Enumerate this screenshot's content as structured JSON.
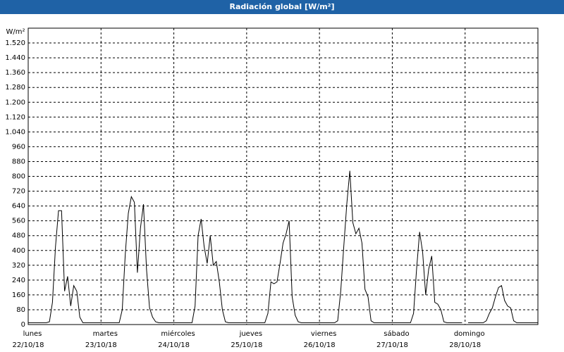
{
  "chart_data": {
    "type": "line",
    "title": "Radiación global [W/m²]",
    "y_label": "W/m²",
    "x": [
      0,
      1,
      2,
      3,
      4,
      5,
      6,
      7,
      8,
      9,
      10,
      11,
      12,
      13,
      14,
      15,
      16,
      17,
      18,
      19,
      20,
      21,
      22,
      23,
      24,
      25,
      26,
      27,
      28,
      29,
      30,
      31,
      32,
      33,
      34,
      35,
      36,
      37,
      38,
      39,
      40,
      41,
      42,
      43,
      44,
      45,
      46,
      47,
      48,
      49,
      50,
      51,
      52,
      53,
      54,
      55,
      56,
      57,
      58,
      59,
      60,
      61,
      62,
      63,
      64,
      65,
      66,
      67,
      68,
      69,
      70,
      71,
      72,
      73,
      74,
      75,
      76,
      77,
      78,
      79,
      80,
      81,
      82,
      83,
      84,
      85,
      86,
      87,
      88,
      89,
      90,
      91,
      92,
      93,
      94,
      95,
      96,
      97,
      98,
      99,
      100,
      101,
      102,
      103,
      104,
      105,
      106,
      107,
      108,
      109,
      110,
      111,
      112,
      113,
      114,
      115,
      116,
      117,
      118,
      119,
      120,
      121,
      122,
      123,
      124,
      125,
      126,
      127,
      128,
      129,
      130,
      131,
      132,
      133,
      134,
      135,
      136,
      137,
      138,
      139,
      140,
      141,
      142,
      143,
      144,
      145,
      146,
      147,
      148,
      149,
      150,
      151,
      152,
      153,
      154,
      155,
      156,
      157,
      158,
      159,
      160,
      161,
      162,
      163,
      164,
      165,
      166,
      167,
      168
    ],
    "series": [
      {
        "name": "Radiación global",
        "color": "#000000",
        "values": [
          10,
          10,
          10,
          10,
          10,
          10,
          10,
          15,
          120,
          420,
          615,
          615,
          180,
          260,
          100,
          210,
          180,
          40,
          10,
          10,
          10,
          10,
          10,
          10,
          10,
          10,
          10,
          10,
          10,
          10,
          10,
          80,
          380,
          600,
          690,
          660,
          280,
          520,
          650,
          300,
          90,
          40,
          15,
          10,
          10,
          10,
          10,
          10,
          10,
          10,
          10,
          10,
          10,
          10,
          10,
          100,
          480,
          570,
          420,
          330,
          480,
          320,
          340,
          230,
          80,
          15,
          10,
          10,
          10,
          10,
          10,
          10,
          10,
          10,
          10,
          10,
          10,
          10,
          10,
          60,
          230,
          220,
          230,
          330,
          440,
          490,
          560,
          150,
          50,
          15,
          10,
          10,
          10,
          10,
          10,
          10,
          10,
          10,
          10,
          10,
          10,
          10,
          20,
          180,
          420,
          650,
          830,
          550,
          490,
          520,
          440,
          190,
          150,
          20,
          10,
          10,
          10,
          10,
          10,
          10,
          10,
          10,
          10,
          10,
          10,
          10,
          10,
          60,
          300,
          500,
          390,
          160,
          300,
          370,
          120,
          110,
          80,
          15,
          10,
          10,
          10,
          10,
          10,
          10,
          null,
          10,
          10,
          10,
          10,
          10,
          10,
          20,
          60,
          90,
          150,
          200,
          210,
          130,
          100,
          90,
          20,
          10,
          10,
          10,
          10,
          10,
          10,
          10,
          10
        ]
      }
    ],
    "xlim": [
      0,
      168
    ],
    "xticks": [
      {
        "value": 0,
        "label": [
          "lunes",
          "22/10/18"
        ]
      },
      {
        "value": 24,
        "label": [
          "martes",
          "23/10/18"
        ]
      },
      {
        "value": 48,
        "label": [
          "miércoles",
          "24/10/18"
        ]
      },
      {
        "value": 72,
        "label": [
          "jueves",
          "25/10/18"
        ]
      },
      {
        "value": 96,
        "label": [
          "viernes",
          "26/10/18"
        ]
      },
      {
        "value": 120,
        "label": [
          "sábado",
          "27/10/18"
        ]
      },
      {
        "value": 144,
        "label": [
          "domingo",
          "28/10/18"
        ]
      }
    ],
    "ylim": [
      0,
      1600
    ],
    "yticks": [
      0,
      80,
      160,
      240,
      320,
      400,
      480,
      560,
      640,
      720,
      800,
      880,
      960,
      {
        "value": 1040,
        "label": "1.040"
      },
      {
        "value": 1120,
        "label": "1.120"
      },
      {
        "value": 1200,
        "label": "1.200"
      },
      {
        "value": 1280,
        "label": "1.280"
      },
      {
        "value": 1360,
        "label": "1.360"
      },
      {
        "value": 1440,
        "label": "1.440"
      },
      {
        "value": 1520,
        "label": "1.520"
      }
    ],
    "grid": true
  }
}
